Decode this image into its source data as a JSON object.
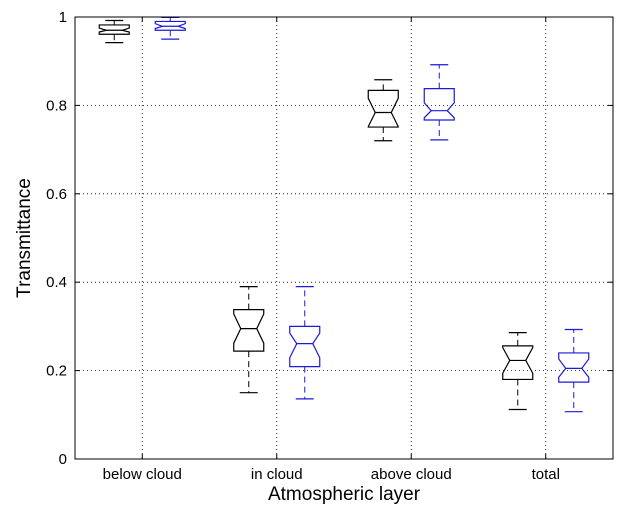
{
  "chart_data": {
    "type": "boxplot",
    "notched": true,
    "xlabel": "Atmospheric layer",
    "ylabel": "Transmittance",
    "ylim": [
      0,
      1
    ],
    "yticks": [
      0,
      0.2,
      0.4,
      0.6,
      0.8,
      1
    ],
    "ytick_labels": [
      "0",
      "0.2",
      "0.4",
      "0.6",
      "0.8",
      "1"
    ],
    "grid": true,
    "categories": [
      "below cloud",
      "in cloud",
      "above cloud",
      "total"
    ],
    "series": [
      {
        "color": "#000000",
        "boxes": [
          {
            "whisker_low": 0.942,
            "q1": 0.961,
            "median": 0.97,
            "q3": 0.982,
            "whisker_high": 0.992,
            "notch_low": 0.966,
            "notch_high": 0.975
          },
          {
            "whisker_low": 0.15,
            "q1": 0.244,
            "median": 0.295,
            "q3": 0.338,
            "whisker_high": 0.39,
            "notch_low": 0.262,
            "notch_high": 0.328
          },
          {
            "whisker_low": 0.72,
            "q1": 0.751,
            "median": 0.784,
            "q3": 0.834,
            "whisker_high": 0.858,
            "notch_low": 0.752,
            "notch_high": 0.816
          },
          {
            "whisker_low": 0.112,
            "q1": 0.18,
            "median": 0.223,
            "q3": 0.256,
            "whisker_high": 0.286,
            "notch_low": 0.194,
            "notch_high": 0.252
          }
        ]
      },
      {
        "color": "#1a1adb",
        "boxes": [
          {
            "whisker_low": 0.95,
            "q1": 0.97,
            "median": 0.979,
            "q3": 0.99,
            "whisker_high": 0.999,
            "notch_low": 0.974,
            "notch_high": 0.985
          },
          {
            "whisker_low": 0.136,
            "q1": 0.209,
            "median": 0.261,
            "q3": 0.3,
            "whisker_high": 0.39,
            "notch_low": 0.229,
            "notch_high": 0.285
          },
          {
            "whisker_low": 0.722,
            "q1": 0.767,
            "median": 0.788,
            "q3": 0.838,
            "whisker_high": 0.892,
            "notch_low": 0.772,
            "notch_high": 0.806
          },
          {
            "whisker_low": 0.107,
            "q1": 0.174,
            "median": 0.205,
            "q3": 0.24,
            "whisker_high": 0.293,
            "notch_low": 0.185,
            "notch_high": 0.226
          }
        ]
      }
    ]
  }
}
